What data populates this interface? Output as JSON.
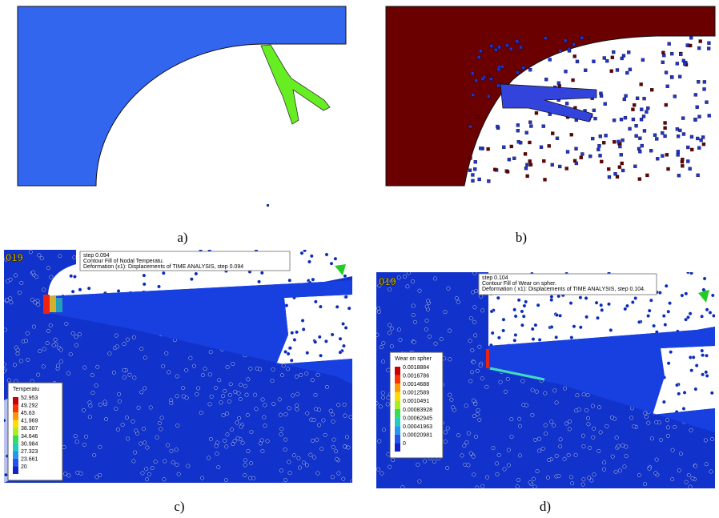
{
  "panels": [
    {
      "caption": "a)"
    },
    {
      "caption": "b)"
    },
    {
      "caption": "c)",
      "logo": "019",
      "info": [
        "step 0.094",
        "Contour Fill of Nodal Temperatu.",
        "Deformation (x1): Displacements of TIME ANALYSIS, step 0.094"
      ],
      "legend": {
        "title": "Temperatu",
        "labels": [
          "52.953",
          "49.292",
          "45.63",
          "41.969",
          "38.307",
          "34.646",
          "30.984",
          "27.323",
          "23.661",
          "20"
        ]
      }
    },
    {
      "caption": "d)",
      "logo": "019",
      "info": [
        "step 0.104",
        "Contour Fill of Wear on spher.",
        "Deformation ( x1): Displacements of TIME ANALYSIS, step 0.104."
      ],
      "legend": {
        "title": "Wear on spher",
        "labels": [
          "0.0018884",
          "0.0016786",
          "0.0014688",
          "0.0012589",
          "0.0010491",
          "0.00083928",
          "0.00062945",
          "0.00041963",
          "0.00020981",
          "0"
        ]
      }
    }
  ]
}
